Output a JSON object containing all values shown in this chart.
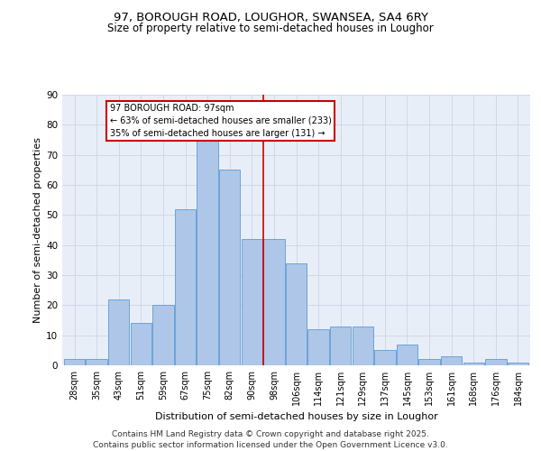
{
  "title1": "97, BOROUGH ROAD, LOUGHOR, SWANSEA, SA4 6RY",
  "title2": "Size of property relative to semi-detached houses in Loughor",
  "xlabel": "Distribution of semi-detached houses by size in Loughor",
  "ylabel": "Number of semi-detached properties",
  "categories": [
    "28sqm",
    "35sqm",
    "43sqm",
    "51sqm",
    "59sqm",
    "67sqm",
    "75sqm",
    "82sqm",
    "90sqm",
    "98sqm",
    "106sqm",
    "114sqm",
    "121sqm",
    "129sqm",
    "137sqm",
    "145sqm",
    "153sqm",
    "161sqm",
    "168sqm",
    "176sqm",
    "184sqm"
  ],
  "values": [
    2,
    2,
    22,
    14,
    20,
    52,
    75,
    65,
    42,
    42,
    34,
    12,
    13,
    13,
    5,
    7,
    2,
    3,
    1,
    2,
    1
  ],
  "bar_color": "#aec6e8",
  "bar_edge_color": "#5b9bd5",
  "vline_x": 8.5,
  "annotation_title": "97 BOROUGH ROAD: 97sqm",
  "annotation_line1": "← 63% of semi-detached houses are smaller (233)",
  "annotation_line2": "35% of semi-detached houses are larger (131) →",
  "annotation_box_color": "#ffffff",
  "annotation_border_color": "#cc0000",
  "vline_color": "#cc0000",
  "grid_color": "#d0d8e8",
  "background_color": "#e8eef8",
  "ylim": [
    0,
    90
  ],
  "yticks": [
    0,
    10,
    20,
    30,
    40,
    50,
    60,
    70,
    80,
    90
  ],
  "footer": "Contains HM Land Registry data © Crown copyright and database right 2025.\nContains public sector information licensed under the Open Government Licence v3.0.",
  "footer_fontsize": 6.5,
  "title1_fontsize": 9.5,
  "title2_fontsize": 8.5,
  "axis_label_fontsize": 8,
  "tick_fontsize": 7,
  "annotation_fontsize": 7
}
